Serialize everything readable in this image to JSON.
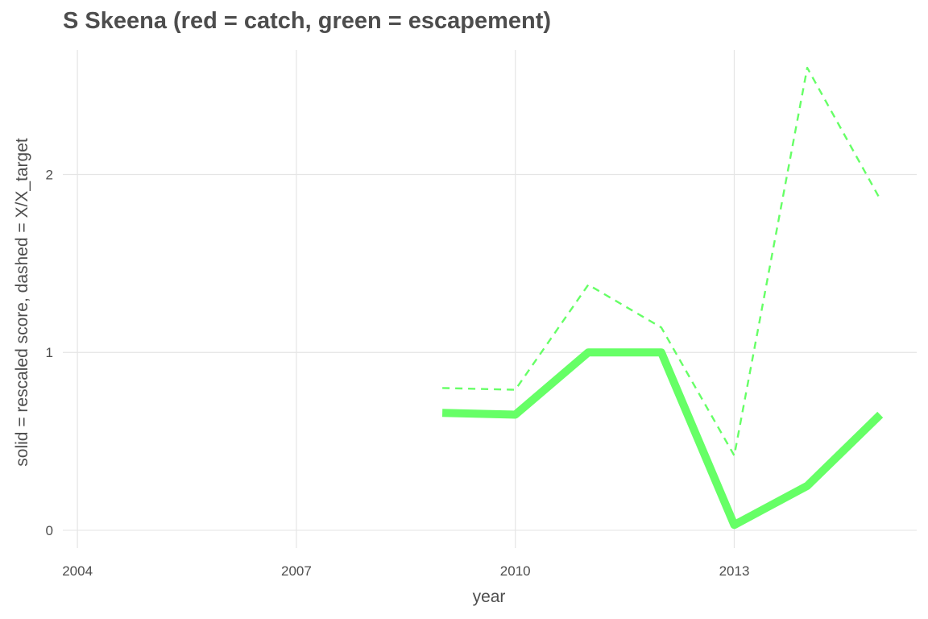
{
  "chart_data": {
    "type": "line",
    "title": "S Skeena (red = catch, green = escapement)",
    "xlabel": "year",
    "ylabel": "solid = rescaled score, dashed = X/X_target",
    "xlim": [
      2003.8,
      2015.5
    ],
    "ylim": [
      -0.1,
      2.7
    ],
    "x_ticks": [
      2004,
      2007,
      2010,
      2013
    ],
    "y_ticks": [
      0,
      1,
      2
    ],
    "grid": true,
    "legend": "none",
    "series": [
      {
        "style": "solid",
        "color": "#66ff66",
        "x": [
          2009,
          2010,
          2011,
          2012,
          2013,
          2014,
          2015
        ],
        "y": [
          0.66,
          0.65,
          1.0,
          1.0,
          0.03,
          0.25,
          0.65
        ]
      },
      {
        "style": "dashed",
        "color": "#66ff66",
        "x": [
          2009,
          2010,
          2011,
          2012,
          2013,
          2014,
          2015
        ],
        "y": [
          0.8,
          0.79,
          1.38,
          1.14,
          0.42,
          2.6,
          1.86
        ]
      }
    ]
  }
}
